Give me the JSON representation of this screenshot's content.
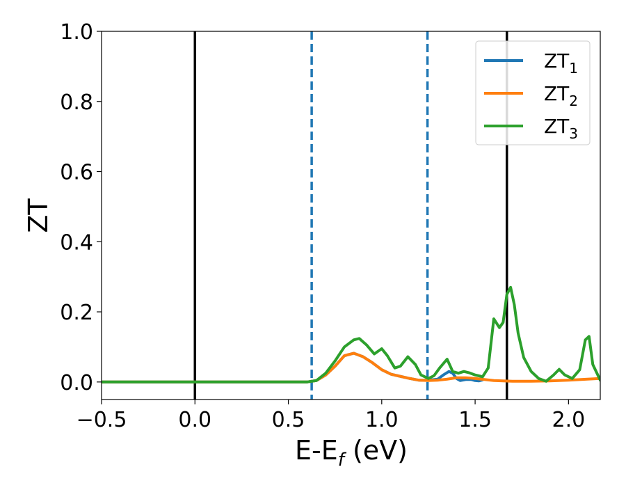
{
  "chart_data": {
    "type": "line",
    "title": "",
    "xlabel": "E-E",
    "xlabel_subscript": "f",
    "xlabel_suffix": " (eV)",
    "ylabel": "ZT",
    "xlim": [
      -0.5,
      2.17
    ],
    "ylim": [
      -0.05,
      1.0
    ],
    "grid": false,
    "legend_position": "top-right",
    "xticks": [
      -0.5,
      0.0,
      0.5,
      1.0,
      1.5,
      2.0
    ],
    "xtick_labels": [
      "−0.5",
      "0.0",
      "0.5",
      "1.0",
      "1.5",
      "2.0"
    ],
    "yticks": [
      0.0,
      0.2,
      0.4,
      0.6,
      0.8,
      1.0
    ],
    "ytick_labels": [
      "0.0",
      "0.2",
      "0.4",
      "0.6",
      "0.8",
      "1.0"
    ],
    "vlines": [
      {
        "x": 0.0,
        "style": "solid",
        "color": "#000000"
      },
      {
        "x": 0.625,
        "style": "dashed",
        "color": "#1f77b4"
      },
      {
        "x": 1.245,
        "style": "dashed",
        "color": "#1f77b4"
      },
      {
        "x": 1.67,
        "style": "solid",
        "color": "#000000"
      }
    ],
    "series": [
      {
        "name": "ZT",
        "name_subscript": "1",
        "color": "#1f77b4",
        "x": [
          -0.5,
          0.6,
          0.65,
          0.7,
          0.75,
          0.8,
          0.85,
          0.9,
          0.95,
          1.0,
          1.05,
          1.1,
          1.15,
          1.2,
          1.25,
          1.3,
          1.33,
          1.36,
          1.38,
          1.4,
          1.42,
          1.45,
          1.48,
          1.5,
          1.52,
          1.54
        ],
        "y": [
          0.0,
          0.0,
          0.004,
          0.02,
          0.045,
          0.075,
          0.082,
          0.072,
          0.055,
          0.035,
          0.022,
          0.016,
          0.01,
          0.005,
          0.005,
          0.008,
          0.02,
          0.03,
          0.025,
          0.01,
          0.004,
          0.007,
          0.007,
          0.004,
          0.003,
          0.006
        ]
      },
      {
        "name": "ZT",
        "name_subscript": "2",
        "color": "#ff7f0e",
        "x": [
          -0.5,
          0.6,
          0.65,
          0.7,
          0.75,
          0.8,
          0.85,
          0.9,
          0.95,
          1.0,
          1.05,
          1.1,
          1.15,
          1.2,
          1.25,
          1.3,
          1.35,
          1.4,
          1.45,
          1.5,
          1.55,
          1.6,
          1.65,
          1.7,
          1.8,
          1.9,
          2.0,
          2.1,
          2.17
        ],
        "y": [
          0.0,
          0.0,
          0.004,
          0.02,
          0.045,
          0.075,
          0.082,
          0.072,
          0.055,
          0.035,
          0.022,
          0.016,
          0.01,
          0.005,
          0.004,
          0.005,
          0.008,
          0.012,
          0.012,
          0.01,
          0.007,
          0.004,
          0.003,
          0.002,
          0.002,
          0.003,
          0.005,
          0.008,
          0.01
        ]
      },
      {
        "name": "ZT",
        "name_subscript": "3",
        "color": "#2ca02c",
        "x": [
          -0.5,
          0.6,
          0.65,
          0.7,
          0.75,
          0.8,
          0.85,
          0.88,
          0.92,
          0.96,
          1.0,
          1.03,
          1.07,
          1.1,
          1.14,
          1.18,
          1.21,
          1.25,
          1.28,
          1.31,
          1.35,
          1.38,
          1.41,
          1.44,
          1.47,
          1.5,
          1.54,
          1.57,
          1.6,
          1.63,
          1.65,
          1.67,
          1.69,
          1.71,
          1.73,
          1.76,
          1.8,
          1.84,
          1.88,
          1.92,
          1.95,
          1.98,
          2.02,
          2.06,
          2.09,
          2.11,
          2.13,
          2.17
        ],
        "y": [
          0.0,
          0.0,
          0.004,
          0.025,
          0.06,
          0.1,
          0.12,
          0.124,
          0.105,
          0.08,
          0.095,
          0.075,
          0.04,
          0.045,
          0.072,
          0.05,
          0.02,
          0.01,
          0.018,
          0.04,
          0.065,
          0.03,
          0.025,
          0.03,
          0.026,
          0.02,
          0.015,
          0.04,
          0.18,
          0.155,
          0.17,
          0.25,
          0.27,
          0.22,
          0.14,
          0.07,
          0.03,
          0.01,
          0.002,
          0.02,
          0.036,
          0.02,
          0.01,
          0.035,
          0.12,
          0.13,
          0.05,
          0.005
        ]
      }
    ]
  }
}
